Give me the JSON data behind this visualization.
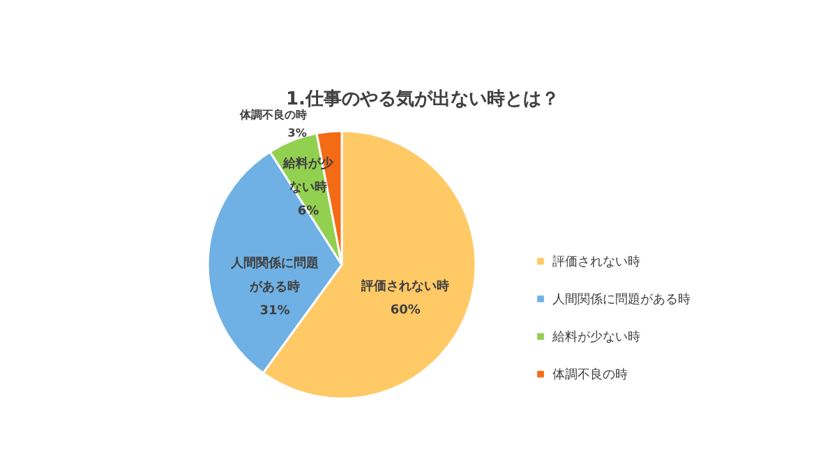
{
  "chart_data": {
    "type": "pie",
    "title": "1.仕事のやる気が出ない時とは？",
    "categories": [
      "評価されない時",
      "人間関係に問題がある時",
      "給料が少ない時",
      "体調不良の時"
    ],
    "values": [
      60,
      31,
      6,
      3
    ],
    "colors": [
      "#ffc966",
      "#6fb1e4",
      "#92d050",
      "#f46b16"
    ],
    "value_labels": [
      "60%",
      "31%",
      "6%",
      "3%"
    ],
    "annotations": [
      "人間関係に問題",
      "がある時",
      "給料が少",
      "ない時"
    ],
    "legend": "right"
  }
}
